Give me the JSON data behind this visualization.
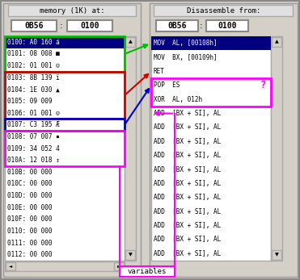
{
  "bg_color": "#d4d0c8",
  "title_left": "memory (1K) at:",
  "title_right": "Disassemble from:",
  "addr_left_seg": "0B56",
  "addr_left_off": "0100",
  "addr_right_seg": "0B56",
  "addr_right_off": "0100",
  "memory_rows": [
    [
      "0100:",
      "A0",
      "160",
      "á"
    ],
    [
      "0101:",
      "08",
      "008",
      "■"
    ],
    [
      "0102:",
      "01",
      "001",
      "☺"
    ],
    [
      "0103:",
      "8B",
      "139",
      "ï"
    ],
    [
      "0104:",
      "1E",
      "030",
      "▲"
    ],
    [
      "0105:",
      "09",
      "009",
      ""
    ],
    [
      "0106:",
      "01",
      "001",
      "☺"
    ],
    [
      "0107:",
      "C3",
      "195",
      "Æ"
    ],
    [
      "0108:",
      "07",
      "007",
      "▪"
    ],
    [
      "0109:",
      "34",
      "052",
      "4"
    ],
    [
      "010A:",
      "12",
      "018",
      "↕"
    ],
    [
      "010B:",
      "00",
      "000",
      ""
    ],
    [
      "010C:",
      "00",
      "000",
      ""
    ],
    [
      "010D:",
      "00",
      "000",
      ""
    ],
    [
      "010E:",
      "00",
      "000",
      ""
    ],
    [
      "010F:",
      "00",
      "000",
      ""
    ],
    [
      "0110:",
      "00",
      "000",
      ""
    ],
    [
      "0111:",
      "00",
      "000",
      ""
    ],
    [
      "0112:",
      "00",
      "000",
      ""
    ]
  ],
  "disasm_rows": [
    "MOV  AL, [00108h]",
    "MOV  BX, [00109h]",
    "RET",
    "POP  ES",
    "XOR  AL, 012h",
    "ADD  [BX + SI], AL",
    "ADD  [BX + SI], AL",
    "ADD  [BX + SI], AL",
    "ADD  [BX + SI], AL",
    "ADD  [BX + SI], AL",
    "ADD  [BX + SI], AL",
    "ADD  [BX + SI], AL",
    "ADD  [BX + SI], AL",
    "ADD  [BX + SI], AL",
    "ADD  [BX + SI], AL",
    "ADD  [BX + SI], AL"
  ],
  "highlight_mem_color": "#000080",
  "highlight_disasm_color": "#000080",
  "question_mark_color": "#ff00ff",
  "green_color": "#00bb00",
  "red_color": "#cc0000",
  "blue_color": "#0000cc",
  "magenta_color": "#ff00ff",
  "font_mono": "monospace"
}
